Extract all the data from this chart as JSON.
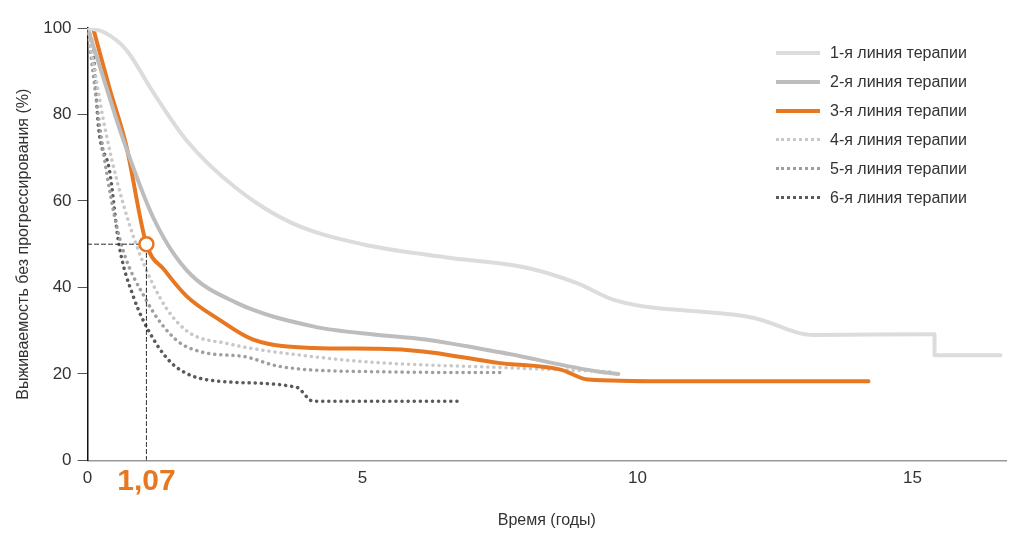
{
  "chart_data": {
    "type": "line",
    "xlabel": "Время (годы)",
    "ylabel": "Выживаемость без прогрессирования (%)",
    "xlim": [
      0,
      16.7
    ],
    "xticks": [
      0,
      5,
      10,
      15
    ],
    "ylim": [
      0,
      100
    ],
    "yticks": [
      0,
      20,
      40,
      60,
      80,
      100
    ],
    "grid": false,
    "legend": "top right",
    "marker": "none",
    "annotations": [
      {
        "text": "1,07",
        "x": 1.07,
        "y": 0
      }
    ],
    "series": [
      {
        "color": "#222222",
        "line_style": "dashed",
        "x": [
          0,
          1.07
        ],
        "values": [
          50,
          50
        ]
      },
      {
        "color": "#222222",
        "line_style": "dashed",
        "x": [
          1.07,
          1.07
        ],
        "values": [
          0,
          50
        ]
      },
      {
        "type": "scatter",
        "color": "#e87722",
        "marker": "circle",
        "x": [
          1.07
        ],
        "values": [
          50
        ]
      },
      {
        "name": "1-я линия терапии",
        "color": "#dcdcdc",
        "line_style": "solid",
        "x": [
          0,
          0.3,
          0.7,
          1.2,
          1.8,
          2.7,
          3.7,
          5,
          6.5,
          8,
          8.9,
          9.6,
          12.1,
          13.2,
          15.4,
          15.4,
          16.6
        ],
        "values": [
          100,
          99,
          95,
          85,
          74,
          63,
          55,
          50,
          47,
          44.5,
          41,
          37,
          33,
          29,
          29.2,
          24.3,
          24.3
        ]
      },
      {
        "name": "2-я линия терапии",
        "color": "#bdbdbd",
        "line_style": "solid",
        "x": [
          0,
          0.3,
          0.6,
          1.2,
          1.8,
          2.7,
          4.1,
          5.3,
          6.1,
          7.5,
          9.3,
          9.65
        ],
        "values": [
          100,
          88,
          76,
          56,
          44,
          36.5,
          31,
          29,
          28,
          25,
          20.5,
          20
        ]
      },
      {
        "name": "3-я линия терапии",
        "color": "#e87722",
        "line_style": "solid",
        "x": [
          0.1,
          0.4,
          0.7,
          1.07,
          1.4,
          1.8,
          2.4,
          3,
          4.1,
          5.3,
          6.1,
          7.5,
          8.6,
          9.1,
          10.5,
          14.2
        ],
        "values": [
          100,
          86,
          73,
          50,
          44,
          38,
          32.5,
          28,
          26,
          25.8,
          25.2,
          22.5,
          21,
          18.7,
          18.3,
          18.3
        ]
      },
      {
        "name": "4-я линия терапии",
        "color": "#c8c8c8",
        "line_style": "dotted",
        "x": [
          0,
          0.33,
          0.75,
          1.3,
          1.8,
          2.55,
          4.1,
          5.3,
          7.5,
          9.5
        ],
        "values": [
          100,
          76,
          55,
          38,
          30,
          27,
          24,
          22.6,
          21.5,
          20.5
        ]
      },
      {
        "name": "5-я линия терапии",
        "color": "#9e9e9e",
        "line_style": "dotted",
        "x": [
          0,
          0.28,
          0.57,
          1.07,
          1.6,
          2.1,
          2.85,
          3.5,
          5.3,
          7.6
        ],
        "values": [
          100,
          72,
          52,
          37,
          28,
          25,
          24,
          21.7,
          20.5,
          20.3
        ]
      },
      {
        "name": "6-я линия терапии",
        "color": "#5a5a5a",
        "line_style": "dotted",
        "x": [
          0,
          0.1,
          0.2,
          0.4,
          0.57,
          0.83,
          1.2,
          1.6,
          2.4,
          3.8,
          4.1,
          6.75
        ],
        "values": [
          100,
          95,
          77,
          67,
          50,
          38,
          28,
          21.7,
          18.3,
          16.9,
          13.7,
          13.7
        ]
      }
    ]
  }
}
